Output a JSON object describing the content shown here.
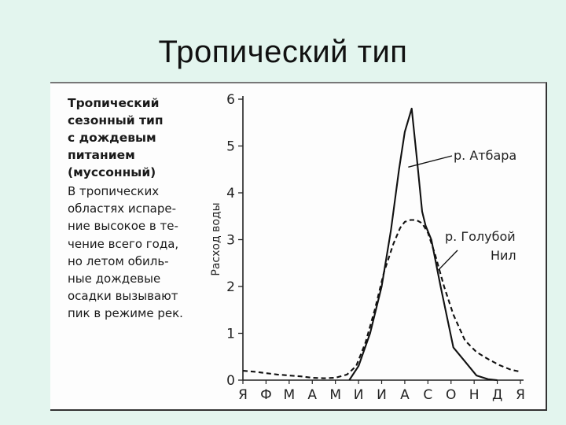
{
  "slide": {
    "title": "Тропический тип"
  },
  "caption": {
    "heading": "Тропический\nсезонный тип\nс дождевым\nпитанием\n(муссонный)",
    "body": "В тропических\nобластях испаре-\nние высокое в те-\nчение всего года,\nно летом обиль-\nные дождевые\nосадки вызывают\nпик в режиме рек."
  },
  "chart_data": {
    "type": "line",
    "ylabel": "Расход воды",
    "xlabel": "",
    "categories": [
      "Я",
      "Ф",
      "М",
      "А",
      "М",
      "И",
      "И",
      "А",
      "С",
      "О",
      "Н",
      "Д",
      "Я"
    ],
    "ylim": [
      0,
      6
    ],
    "yticks": [
      0,
      1,
      2,
      3,
      4,
      5,
      6
    ],
    "grid": false,
    "series": [
      {
        "name": "р. Атбара",
        "style": "solid",
        "x": [
          4.6,
          5.0,
          5.5,
          6.0,
          6.4,
          6.75,
          7.0,
          7.3,
          7.55,
          7.75,
          7.9,
          8.15,
          8.55,
          9.1,
          9.6,
          10.1,
          10.6,
          11.0
        ],
        "y": [
          0.0,
          0.3,
          1.0,
          2.0,
          3.2,
          4.5,
          5.3,
          5.8,
          4.6,
          3.6,
          3.3,
          3.0,
          2.0,
          0.7,
          0.4,
          0.1,
          0.02,
          0.0
        ]
      },
      {
        "name": "р. Голубой Нил",
        "style": "dashed",
        "x": [
          0.0,
          0.5,
          1.0,
          1.5,
          2.0,
          2.5,
          3.0,
          3.5,
          4.0,
          4.5,
          4.9,
          5.3,
          5.7,
          6.1,
          6.5,
          6.8,
          7.0,
          7.25,
          7.5,
          7.75,
          8.0,
          8.3,
          8.7,
          9.1,
          9.6,
          10.1,
          10.6,
          11.1,
          11.6,
          12.0
        ],
        "y": [
          0.2,
          0.18,
          0.15,
          0.12,
          0.1,
          0.08,
          0.05,
          0.04,
          0.05,
          0.12,
          0.3,
          0.8,
          1.5,
          2.3,
          2.9,
          3.25,
          3.38,
          3.42,
          3.42,
          3.35,
          3.15,
          2.7,
          2.0,
          1.4,
          0.85,
          0.6,
          0.45,
          0.32,
          0.22,
          0.18
        ]
      }
    ],
    "annotations": [
      {
        "text": "р. Атбара",
        "series": "р. Атбара"
      },
      {
        "text": "р. Голубой",
        "series": "р. Голубой Нил"
      },
      {
        "text": "Нил",
        "series": "р. Голубой Нил"
      }
    ]
  }
}
